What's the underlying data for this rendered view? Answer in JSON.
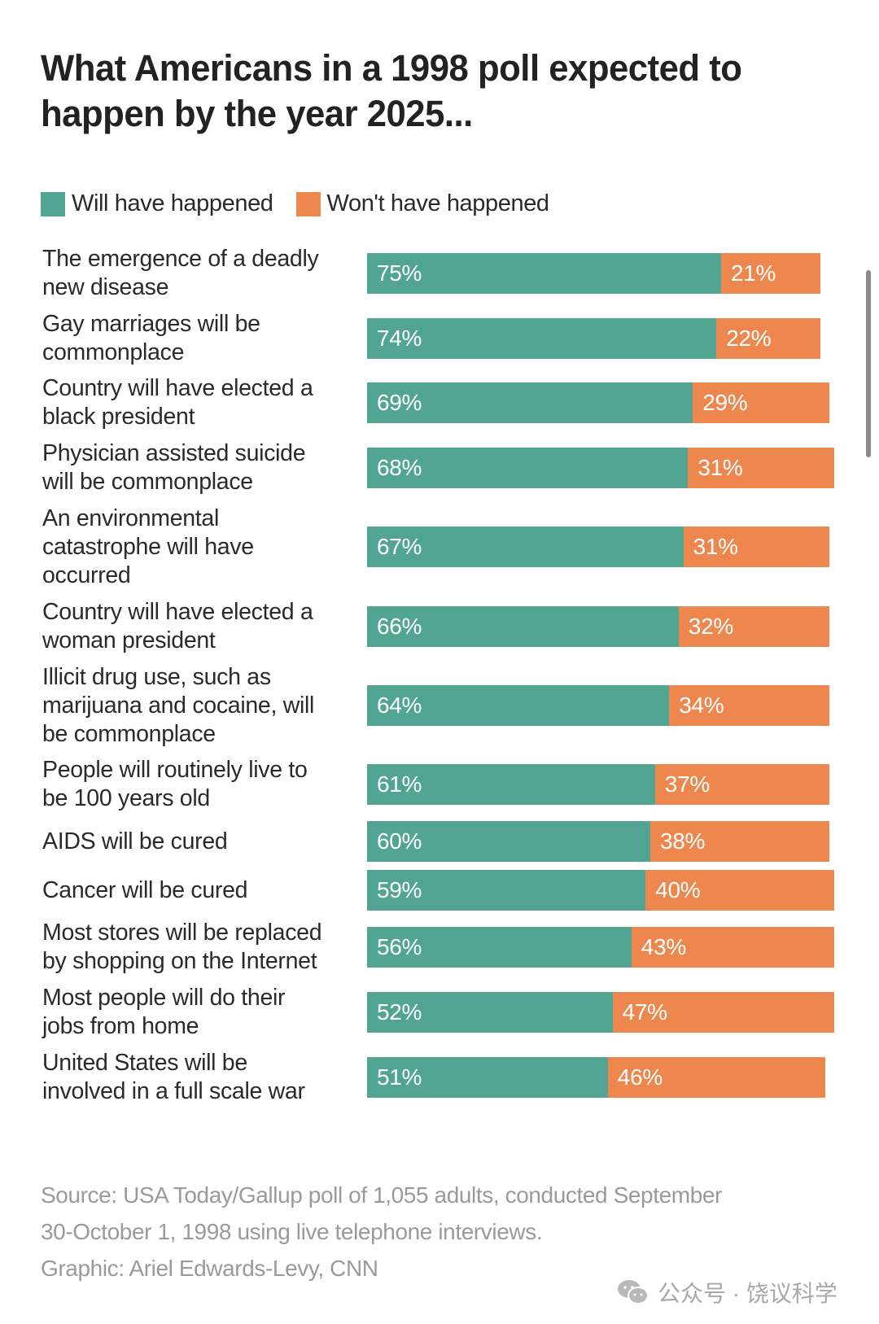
{
  "colors": {
    "will": "#52A593",
    "wont": "#EE874D",
    "text": "#262626",
    "source": "#9a9a9a"
  },
  "chart_data": {
    "type": "bar",
    "orientation": "horizontal",
    "stacked": true,
    "title": "What Americans in a 1998 poll expected to happen by the year 2025...",
    "xlabel": "",
    "ylabel": "",
    "xlim": [
      0,
      100
    ],
    "grid": false,
    "legend_position": "top-left",
    "legend": [
      "Will have happened",
      "Won't have happened"
    ],
    "categories": [
      "The emergence of a deadly new disease",
      "Gay marriages will be commonplace",
      "Country will have elected a black president",
      "Physician assisted suicide will be commonplace",
      "An environmental catastrophe will have occurred",
      "Country will have elected a woman president",
      "Illicit drug use, such as marijuana and cocaine, will be commonplace",
      "People will routinely live to be 100 years old",
      "AIDS will be cured",
      "Cancer will be cured",
      "Most stores will be replaced by shopping on the Internet",
      "Most people will do their jobs from home",
      "United States will be involved in a full scale war"
    ],
    "series": [
      {
        "name": "Will have happened",
        "values": [
          75,
          74,
          69,
          68,
          67,
          66,
          64,
          61,
          60,
          59,
          56,
          52,
          51
        ]
      },
      {
        "name": "Won't have happened",
        "values": [
          21,
          22,
          29,
          31,
          31,
          32,
          34,
          37,
          38,
          40,
          43,
          47,
          46
        ]
      }
    ],
    "value_labels": [
      [
        "75%",
        "21%"
      ],
      [
        "74%",
        "22%"
      ],
      [
        "69%",
        "29%"
      ],
      [
        "68%",
        "31%"
      ],
      [
        "67%",
        "31%"
      ],
      [
        "66%",
        "32%"
      ],
      [
        "64%",
        "34%"
      ],
      [
        "61%",
        "37%"
      ],
      [
        "60%",
        "38%"
      ],
      [
        "59%",
        "40%"
      ],
      [
        "56%",
        "43%"
      ],
      [
        "52%",
        "47%"
      ],
      [
        "51%",
        "46%"
      ]
    ],
    "category_lines": [
      [
        "The emergence of a deadly",
        "new disease"
      ],
      [
        "Gay marriages will be",
        "commonplace"
      ],
      [
        "Country will have elected a",
        "black president"
      ],
      [
        "Physician assisted suicide",
        "will be commonplace"
      ],
      [
        "An environmental",
        "catastrophe will have",
        "occurred"
      ],
      [
        "Country will have elected a",
        "woman president"
      ],
      [
        "Illicit drug use, such as",
        "marijuana and cocaine, will",
        "be commonplace"
      ],
      [
        "People will routinely live to",
        "be 100 years old"
      ],
      [
        "AIDS will be cured"
      ],
      [
        "Cancer will be cured"
      ],
      [
        "Most stores will be replaced",
        "by shopping on the Internet"
      ],
      [
        "Most people will do their",
        "jobs from home"
      ],
      [
        "United States will be",
        "involved in a full scale war"
      ]
    ]
  },
  "header": {
    "title": "What Americans in a 1998 poll expected to happen by the year 2025..."
  },
  "legend": {
    "will_label": "Will have happened",
    "wont_label": "Won't have happened"
  },
  "footer": {
    "source_line1": "Source: USA Today/Gallup poll of 1,055 adults, conducted September",
    "source_line2": "30-October 1, 1998 using live telephone interviews.",
    "graphic_credit": "Graphic: Ariel Edwards-Levy, CNN",
    "watermark": "公众号 · 饶议科学",
    "watermark_icon": "wechat-icon"
  }
}
